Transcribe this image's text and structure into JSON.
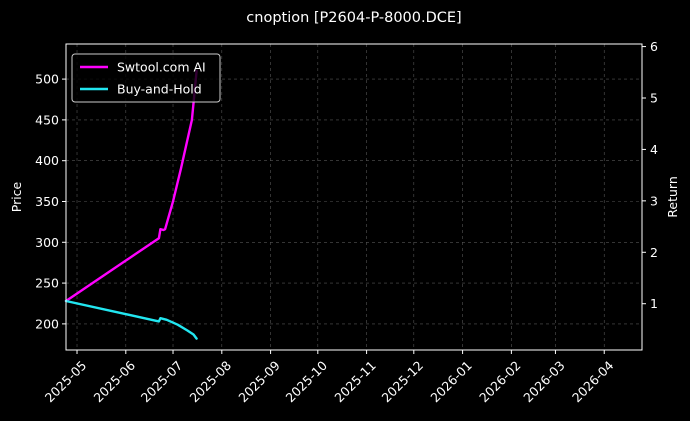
{
  "chart_data": {
    "type": "line",
    "title": "cnoption [P2604-P-8000.DCE]",
    "ylabel": "Price",
    "y2label": "Return",
    "xlim": [
      "2025-04-24",
      "2026-04-25"
    ],
    "ylim": [
      168,
      543
    ],
    "y2lim": [
      0.1,
      6.05
    ],
    "grid": true,
    "legend_position": "top-left",
    "x_ticks": [
      "2025-05",
      "2025-06",
      "2025-07",
      "2025-08",
      "2025-09",
      "2025-10",
      "2025-11",
      "2025-12",
      "2026-01",
      "2026-02",
      "2026-03",
      "2026-04"
    ],
    "y_ticks": [
      200,
      250,
      300,
      350,
      400,
      450,
      500
    ],
    "y2_ticks": [
      1,
      2,
      3,
      4,
      5,
      6
    ],
    "series": [
      {
        "name": "Swtool.com AI",
        "color": "#ff00ff",
        "axis": "left",
        "points": [
          {
            "x": "2025-04-24",
            "y": 228
          },
          {
            "x": "2025-06-22",
            "y": 305
          },
          {
            "x": "2025-06-23",
            "y": 316
          },
          {
            "x": "2025-06-25",
            "y": 315
          },
          {
            "x": "2025-06-26",
            "y": 316
          },
          {
            "x": "2025-07-01",
            "y": 350
          },
          {
            "x": "2025-07-06",
            "y": 390
          },
          {
            "x": "2025-07-13",
            "y": 450
          },
          {
            "x": "2025-07-16",
            "y": 510
          }
        ]
      },
      {
        "name": "Buy-and-Hold",
        "color": "#22e6f0",
        "axis": "left",
        "points": [
          {
            "x": "2025-04-24",
            "y": 228
          },
          {
            "x": "2025-06-22",
            "y": 203
          },
          {
            "x": "2025-06-23",
            "y": 207
          },
          {
            "x": "2025-06-27",
            "y": 205
          },
          {
            "x": "2025-07-04",
            "y": 199
          },
          {
            "x": "2025-07-10",
            "y": 192
          },
          {
            "x": "2025-07-14",
            "y": 187
          },
          {
            "x": "2025-07-16",
            "y": 182
          }
        ]
      }
    ]
  }
}
